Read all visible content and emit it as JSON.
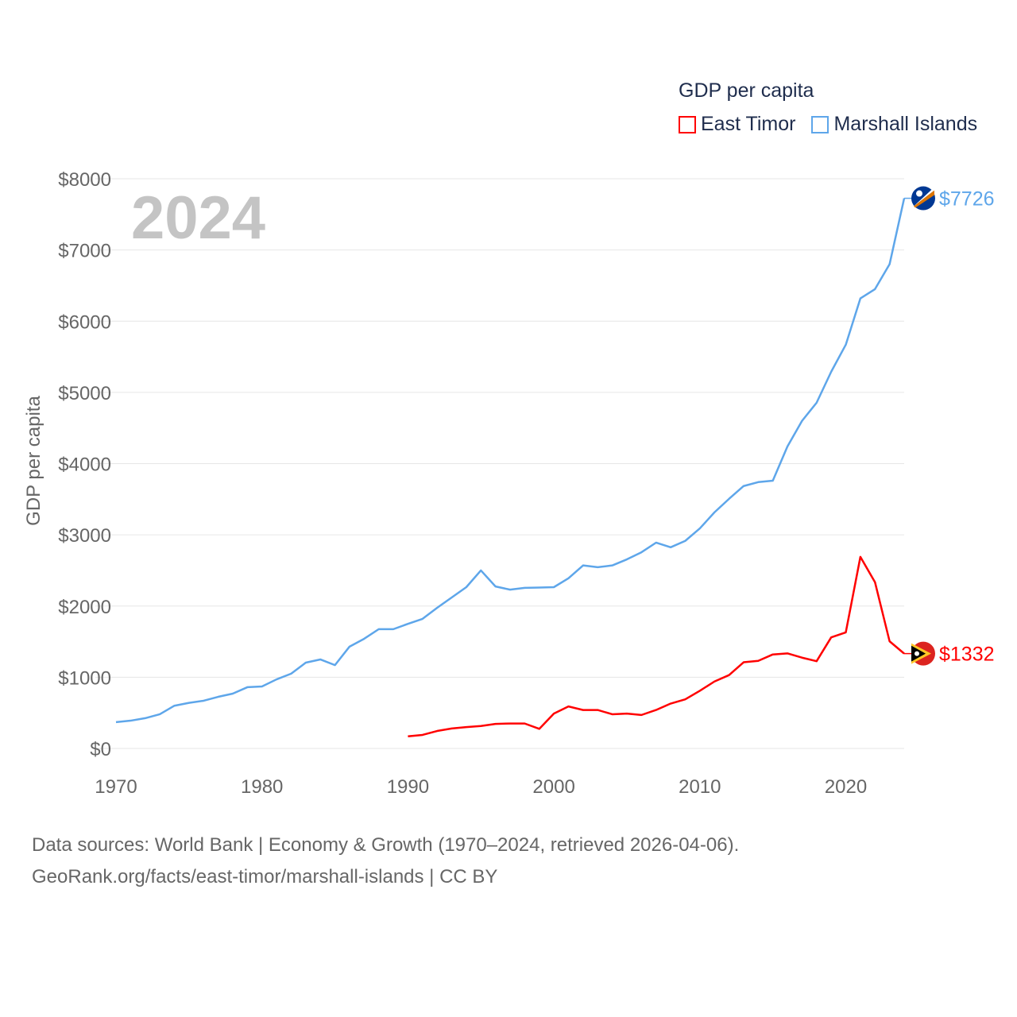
{
  "chart_data": {
    "type": "line",
    "title": "GDP per capita",
    "ylabel": "GDP per capita",
    "xlabel": "",
    "year_label": "2024",
    "xlim": [
      1970,
      2024
    ],
    "ylim": [
      0,
      8000
    ],
    "x_ticks": [
      "1970",
      "1980",
      "1990",
      "2000",
      "2010",
      "2020"
    ],
    "y_ticks": [
      "$0",
      "$1000",
      "$2000",
      "$3000",
      "$4000",
      "$5000",
      "$6000",
      "$7000",
      "$8000"
    ],
    "grid": true,
    "legend_placement": "top-right",
    "series": [
      {
        "name": "East Timor",
        "color": "#ff0000",
        "end_label": "$1332",
        "start_year": 1990,
        "values": [
          170,
          190,
          245,
          280,
          300,
          315,
          345,
          350,
          350,
          275,
          490,
          590,
          540,
          540,
          480,
          490,
          470,
          540,
          630,
          690,
          810,
          940,
          1030,
          1210,
          1230,
          1320,
          1335,
          1275,
          1225,
          1560,
          1630,
          2690,
          2335,
          1505,
          1332
        ]
      },
      {
        "name": "Marshall Islands",
        "color": "#5ea6ea",
        "end_label": "$7726",
        "start_year": 1970,
        "values": [
          370,
          390,
          425,
          480,
          600,
          640,
          670,
          725,
          770,
          860,
          870,
          970,
          1050,
          1205,
          1250,
          1170,
          1430,
          1540,
          1675,
          1675,
          1750,
          1820,
          1975,
          2120,
          2265,
          2500,
          2275,
          2230,
          2255,
          2260,
          2265,
          2390,
          2570,
          2545,
          2570,
          2655,
          2755,
          2890,
          2825,
          2915,
          3090,
          3315,
          3505,
          3685,
          3740,
          3760,
          4240,
          4600,
          4855,
          5290,
          5670,
          6320,
          6450,
          6800,
          7726
        ]
      }
    ]
  },
  "footer": {
    "line1": "Data sources: World Bank | Economy & Growth (1970–2024, retrieved 2026-04-06).",
    "line2": "GeoRank.org/facts/east-timor/marshall-islands | CC BY"
  }
}
